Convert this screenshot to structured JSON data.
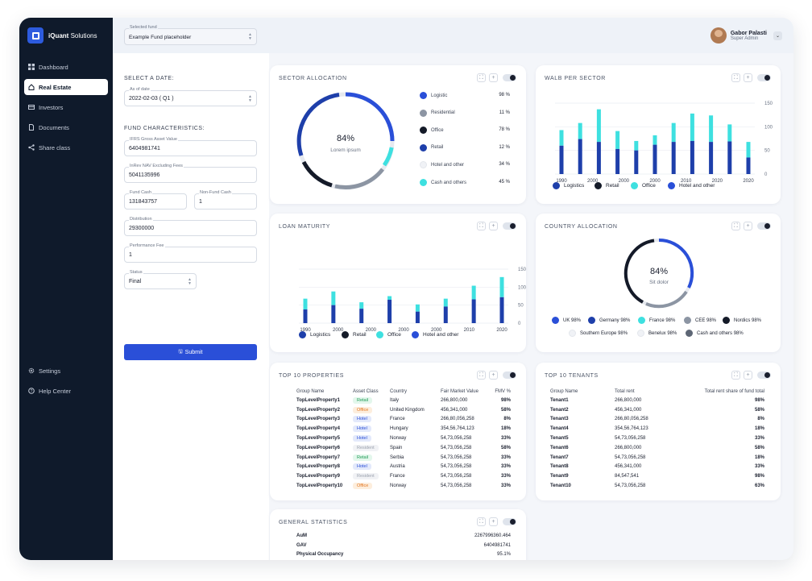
{
  "app": {
    "name_bold": "iQuant",
    "name_rest": " Solutions"
  },
  "colors": {
    "navy": "#1e3faa",
    "blue": "#2a4fd8",
    "cyan": "#3ee0e0",
    "black": "#141a28",
    "gray": "#8c95a3",
    "light": "#e6e9ef",
    "sidebar": "#0f1a2b"
  },
  "sidebar": {
    "items": [
      {
        "label": "Dashboard",
        "icon": "grid-icon"
      },
      {
        "label": "Real Estate",
        "icon": "home-icon"
      },
      {
        "label": "Investors",
        "icon": "card-icon"
      },
      {
        "label": "Documents",
        "icon": "document-icon"
      },
      {
        "label": "Share class",
        "icon": "share-icon"
      }
    ],
    "bottom": [
      {
        "label": "Settings",
        "icon": "gear-icon"
      },
      {
        "label": "Help Center",
        "icon": "help-icon"
      }
    ]
  },
  "header": {
    "fund_label": "Selected fund",
    "fund_value": "Example Fund placeholder",
    "user_name": "Gabor Palasti",
    "user_role": "Super Admin"
  },
  "form": {
    "select_date": "SELECT A DATE:",
    "asof_label": "As of date",
    "asof_value": "2022-02-03 ( Q1 )",
    "fund_chars": "FUND CHARACTERISTICS:",
    "ifrs_label": "IFRS Gross Asset Value",
    "ifrs_value": "6404981741",
    "inrev_label": "InRev NAV Excluding Fees",
    "inrev_value": "5041135996",
    "fundcash_label": "Fund Cash",
    "fundcash_value": "131843757",
    "nonfund_label": "Non-Fund Cash",
    "nonfund_value": "1",
    "dist_label": "Distribution",
    "dist_value": "29300000",
    "perf_label": "Performance Fee",
    "perf_value": "1",
    "status_label": "Status",
    "status_value": "Final",
    "submit": "Submit"
  },
  "sector": {
    "title": "SECTOR ALLOCATION",
    "center_value": "84%",
    "center_label": "Lorem ipsum",
    "items": [
      {
        "label": "Logistic",
        "value": "98 %",
        "color": "#2a4fd8"
      },
      {
        "label": "Residential",
        "value": "11 %",
        "color": "#8c95a3"
      },
      {
        "label": "Office",
        "value": "78 %",
        "color": "#141a28"
      },
      {
        "label": "Retail",
        "value": "12 %",
        "color": "#1e3faa"
      },
      {
        "label": "Hotel and other",
        "value": "34 %",
        "color": "#f0f2f6"
      },
      {
        "label": "Cash and others",
        "value": "45 %",
        "color": "#3ee0e0"
      }
    ]
  },
  "walb": {
    "title": "WALB PER SECTOR",
    "legend": [
      "Logistics",
      "Retail",
      "Office",
      "Hotel and other"
    ]
  },
  "loan": {
    "title": "LOAN MATURITY",
    "legend": [
      "Logistics",
      "Retail",
      "Office",
      "Hotel and other"
    ]
  },
  "country": {
    "title": "COUNTRY ALLOCATION",
    "center_value": "84%",
    "center_label": "Sit dolor",
    "items": [
      {
        "label": "UK 98%",
        "color": "#2a4fd8"
      },
      {
        "label": "Germany 98%",
        "color": "#1e3faa"
      },
      {
        "label": "France 98%",
        "color": "#3ee0e0"
      },
      {
        "label": "CEE 98%",
        "color": "#8c95a3"
      },
      {
        "label": "Nordics 98%",
        "color": "#141a28"
      },
      {
        "label": "Southern Europe 98%",
        "color": "#f0f2f6"
      },
      {
        "label": "Benelux 98%",
        "color": "#f0f2f6"
      },
      {
        "label": "Cash and others 98%",
        "color": "#5d6675"
      }
    ]
  },
  "properties": {
    "title": "TOP 10 PROPERTIES",
    "columns": [
      "Group Name",
      "Asset Class",
      "Country",
      "Fair Market Value",
      "FMV %"
    ],
    "rows": [
      [
        "TopLevelProperty1",
        "Retail",
        "Italy",
        "266,800,000",
        "98%"
      ],
      [
        "TopLevelProperty2",
        "Office",
        "United Kingdom",
        "456,341,000",
        "58%"
      ],
      [
        "TopLevelProperty3",
        "Hotel",
        "France",
        "266,80,056,258",
        "8%"
      ],
      [
        "TopLevelProperty4",
        "Hotel",
        "Hungary",
        "354,56,764,123",
        "18%"
      ],
      [
        "TopLevelProperty5",
        "Hotel",
        "Norway",
        "54,73,056,258",
        "33%"
      ],
      [
        "TopLevelProperty6",
        "Resident",
        "Spain",
        "54,73,056,258",
        "58%"
      ],
      [
        "TopLevelProperty7",
        "Retail",
        "Serbia",
        "54,73,056,258",
        "33%"
      ],
      [
        "TopLevelProperty8",
        "Hotel",
        "Austria",
        "54,73,056,258",
        "33%"
      ],
      [
        "TopLevelProperty9",
        "Resident",
        "France",
        "54,73,056,258",
        "33%"
      ],
      [
        "TopLevelProperty10",
        "Office",
        "Norway",
        "54,73,056,258",
        "33%"
      ]
    ]
  },
  "tenants": {
    "title": "TOP 10 TENANTS",
    "columns": [
      "Group Name",
      "Total rent",
      "Total rent share of fund total"
    ],
    "rows": [
      [
        "Tenant1",
        "266,800,000",
        "98%"
      ],
      [
        "Tenant2",
        "456,341,000",
        "58%"
      ],
      [
        "Tenant3",
        "266,80,056,258",
        "8%"
      ],
      [
        "Tenant4",
        "354,56,764,123",
        "18%"
      ],
      [
        "Tenant5",
        "54,73,056,258",
        "33%"
      ],
      [
        "Tenant6",
        "266,800,000",
        "58%"
      ],
      [
        "Tenant7",
        "54,73,056,258",
        "18%"
      ],
      [
        "Tenant8",
        "456,341,000",
        "33%"
      ],
      [
        "Tenant9",
        "84,547,541",
        "98%"
      ],
      [
        "Tenant10",
        "54,73,056,258",
        "63%"
      ]
    ]
  },
  "stats": {
    "title": "GENERAL STATISTICS",
    "rows": [
      [
        "AuM",
        "2267996360.464"
      ],
      [
        "GAV",
        "6404981741"
      ],
      [
        "Physical Occupancy",
        "95.1%"
      ]
    ]
  },
  "chart_data": [
    {
      "type": "bar",
      "title": "WALB PER SECTOR",
      "categories": [
        "1990",
        "2000",
        "2000",
        "2000",
        "2000",
        "2010",
        "2020",
        "2020",
        "2020",
        "2020",
        "2020"
      ],
      "tick_labels": [
        "1990",
        "2000",
        "2000",
        "2000",
        "2010",
        "2020",
        "2020"
      ],
      "stacks": [
        [
          60,
          93
        ],
        [
          74,
          108
        ],
        [
          68,
          137
        ],
        [
          53,
          91
        ],
        [
          50,
          70
        ],
        [
          62,
          82
        ],
        [
          68,
          108
        ],
        [
          70,
          128
        ],
        [
          68,
          124
        ],
        [
          69,
          105
        ],
        [
          35,
          68
        ]
      ],
      "series": [
        {
          "name": "Logistics",
          "color": "#1e3faa"
        },
        {
          "name": "Office",
          "color": "#3ee0e0"
        }
      ],
      "ylim": [
        0,
        150
      ],
      "yticks": [
        0,
        50,
        100,
        150
      ],
      "legend": [
        "Logistics",
        "Retail",
        "Office",
        "Hotel and other"
      ]
    },
    {
      "type": "bar",
      "title": "LOAN MATURITY",
      "categories": [
        "1990",
        "2000",
        "2000",
        "2000",
        "2000",
        "2010",
        "2020",
        "2020"
      ],
      "tick_labels": [
        "1990",
        "2000",
        "2000",
        "2000",
        "2000",
        "2010",
        "2020"
      ],
      "stacks": [
        [
          38,
          68
        ],
        [
          50,
          88
        ],
        [
          40,
          58
        ],
        [
          65,
          75
        ],
        [
          32,
          52
        ],
        [
          46,
          68
        ],
        [
          66,
          104
        ],
        [
          72,
          128
        ]
      ],
      "series": [
        {
          "name": "Logistics",
          "color": "#1e3faa"
        },
        {
          "name": "Office",
          "color": "#3ee0e0"
        }
      ],
      "ylim": [
        0,
        150
      ],
      "yticks": [
        0,
        50,
        100,
        150
      ],
      "legend": [
        "Logistics",
        "Retail",
        "Office",
        "Hotel and other"
      ]
    }
  ]
}
